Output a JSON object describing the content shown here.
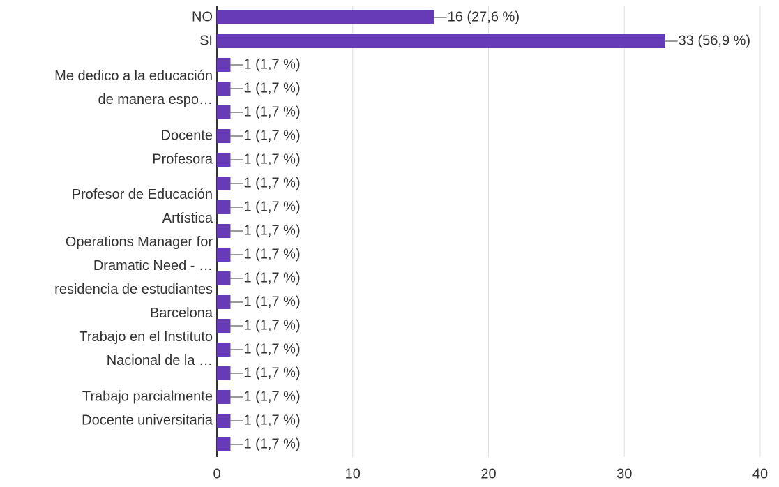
{
  "chart_data": {
    "type": "bar",
    "orientation": "horizontal",
    "categories": [
      "NO",
      "SI",
      null,
      "Me dedico a la educación\nde manera espo…",
      null,
      "Docente",
      "Profesora",
      null,
      "Profesor de Educación\nArtística",
      null,
      "Operations Manager for\nDramatic Need - …",
      null,
      "residencia de estudiantes\nBarcelona",
      null,
      "Trabajo en el Instituto\nNacional de la …",
      null,
      "Trabajo parcialmente",
      "Docente universitaria",
      null
    ],
    "values": [
      16,
      33,
      1,
      1,
      1,
      1,
      1,
      1,
      1,
      1,
      1,
      1,
      1,
      1,
      1,
      1,
      1,
      1,
      1
    ],
    "value_labels": [
      "16 (27,6 %)",
      "33 (56,9 %)",
      "1 (1,7 %)",
      "1 (1,7 %)",
      "1 (1,7 %)",
      "1 (1,7 %)",
      "1 (1,7 %)",
      "1 (1,7 %)",
      "1 (1,7 %)",
      "1 (1,7 %)",
      "1 (1,7 %)",
      "1 (1,7 %)",
      "1 (1,7 %)",
      "1 (1,7 %)",
      "1 (1,7 %)",
      "1 (1,7 %)",
      "1 (1,7 %)",
      "1 (1,7 %)",
      "1 (1,7 %)"
    ],
    "color": "#673ab7",
    "xlim": [
      0,
      40
    ],
    "xticks": [
      0,
      10,
      20,
      30,
      40
    ],
    "grid": true
  }
}
